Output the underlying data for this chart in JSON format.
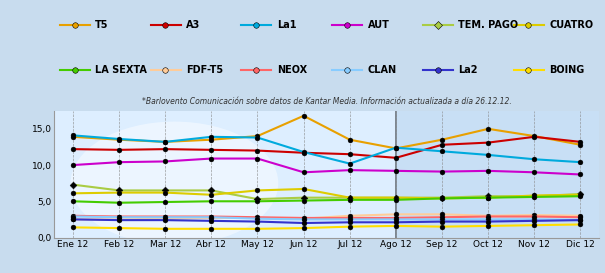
{
  "months": [
    "Ene 12",
    "Feb 12",
    "Mar 12",
    "Abr 12",
    "May 12",
    "Jun 12",
    "Jul 12",
    "Ago 12",
    "Sep 12",
    "Oct 12",
    "Nov 12",
    "Dic 12"
  ],
  "subtitle": "*Barlovento Comunicación sobre datos de Kantar Media. Información actualizada a día 26.12.12.",
  "series": {
    "T5": {
      "color": "#E8A000",
      "values": [
        13.9,
        13.5,
        13.2,
        13.5,
        14.0,
        16.8,
        13.5,
        12.3,
        13.5,
        15.0,
        14.0,
        12.8
      ]
    },
    "A3": {
      "color": "#CC0000",
      "values": [
        12.2,
        12.1,
        12.2,
        12.1,
        12.0,
        11.7,
        11.5,
        11.0,
        12.8,
        13.1,
        13.9,
        13.2
      ]
    },
    "La1": {
      "color": "#00AADD",
      "values": [
        14.1,
        13.6,
        13.2,
        13.9,
        13.8,
        11.8,
        10.2,
        12.4,
        11.9,
        11.4,
        10.8,
        10.4
      ]
    },
    "AUT": {
      "color": "#CC00CC",
      "values": [
        10.0,
        10.4,
        10.5,
        10.9,
        10.9,
        9.0,
        9.3,
        9.2,
        9.1,
        9.2,
        9.0,
        8.7
      ]
    },
    "TEM. PAGO": {
      "color": "#AACC44",
      "values": [
        7.3,
        6.5,
        6.5,
        6.5,
        5.3,
        5.5,
        5.5,
        5.5,
        5.5,
        5.7,
        5.7,
        6.0
      ],
      "diamond": true
    },
    "CUATRO": {
      "color": "#DDCC00",
      "values": [
        6.1,
        6.2,
        6.2,
        5.9,
        6.5,
        6.7,
        5.5,
        5.5,
        5.4,
        5.5,
        5.8,
        5.9
      ]
    },
    "LA SEXTA": {
      "color": "#44CC00",
      "values": [
        5.0,
        4.8,
        4.9,
        5.0,
        5.0,
        5.1,
        5.2,
        5.2,
        5.4,
        5.5,
        5.6,
        5.7
      ]
    },
    "FDF-T5": {
      "color": "#FFCC99",
      "values": [
        2.5,
        2.5,
        2.6,
        2.7,
        2.7,
        2.6,
        3.0,
        3.2,
        3.2,
        3.0,
        3.1,
        3.0
      ]
    },
    "NEOX": {
      "color": "#FF6666",
      "values": [
        3.0,
        2.9,
        2.9,
        2.9,
        2.8,
        2.7,
        2.7,
        2.7,
        2.8,
        2.9,
        2.9,
        2.8
      ]
    },
    "CLAN": {
      "color": "#88CCFF",
      "values": [
        2.9,
        2.8,
        2.8,
        2.8,
        2.6,
        2.5,
        2.5,
        2.5,
        2.5,
        2.5,
        2.5,
        2.4
      ]
    },
    "La2": {
      "color": "#3333CC",
      "values": [
        2.5,
        2.4,
        2.4,
        2.3,
        2.2,
        2.0,
        2.1,
        2.1,
        2.2,
        2.2,
        2.3,
        2.4
      ]
    },
    "BOING": {
      "color": "#FFDD00",
      "values": [
        1.4,
        1.3,
        1.2,
        1.2,
        1.2,
        1.3,
        1.5,
        1.6,
        1.5,
        1.6,
        1.7,
        1.8
      ]
    }
  },
  "ylim": [
    0,
    17.5
  ],
  "yticks": [
    0.0,
    5.0,
    10.0,
    15.0
  ],
  "ytick_labels": [
    "0,0",
    "5,0",
    "10,0",
    "15,0"
  ],
  "bg_color": "#CCDDEF",
  "plot_bg": "#DDEEFF",
  "legend_order": [
    "T5",
    "A3",
    "La1",
    "AUT",
    "TEM. PAGO",
    "CUATRO",
    "LA SEXTA",
    "FDF-T5",
    "NEOX",
    "CLAN",
    "La2",
    "BOING"
  ]
}
